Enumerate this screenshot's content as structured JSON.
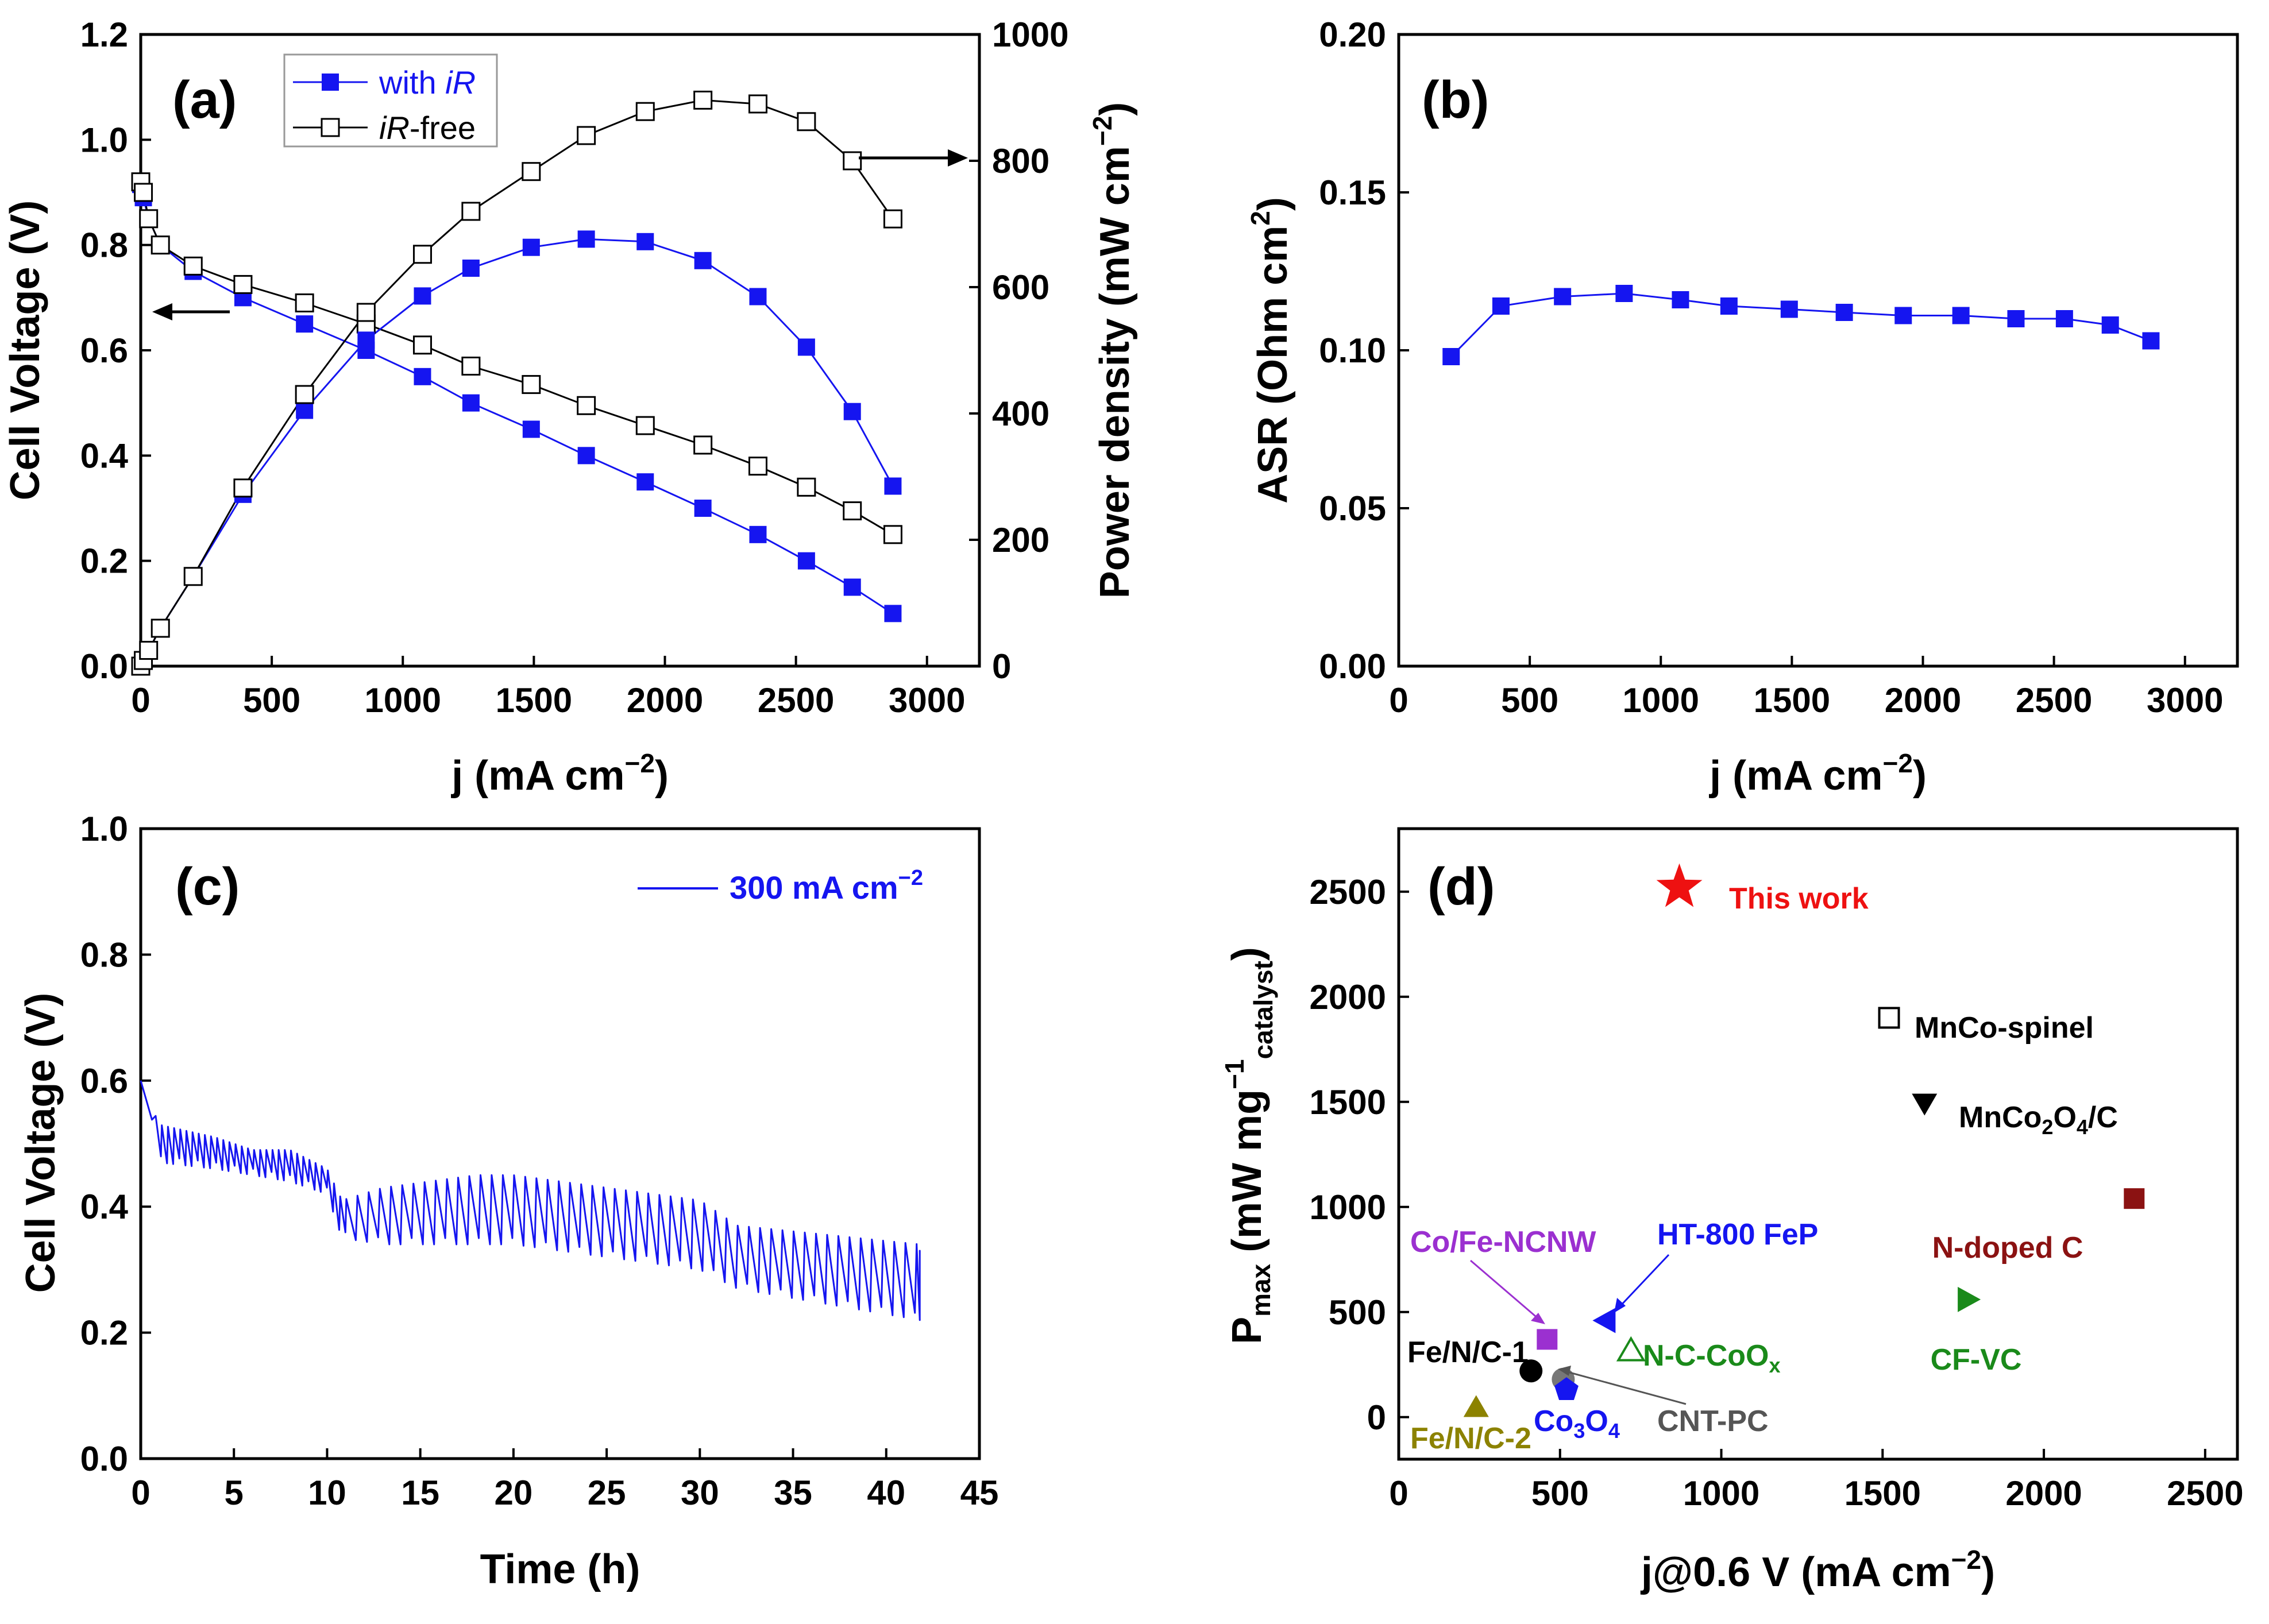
{
  "chart_data": [
    {
      "panel": "(a)",
      "type": "line",
      "xlabel_main": "j (mA cm",
      "xlabel_sup": "−2",
      "xlabel_end": ")",
      "ylabel": "Cell Voltage (V)",
      "y2label_main": "Power density (mW cm",
      "y2label_sup": "−2",
      "y2label_end": ")",
      "xlim": [
        0,
        3200
      ],
      "ylim": [
        0,
        1.2
      ],
      "y2lim": [
        0,
        1000
      ],
      "xticks": [
        "0",
        "500",
        "1000",
        "1500",
        "2000",
        "2500",
        "3000"
      ],
      "yticks": [
        "0.0",
        "0.2",
        "0.4",
        "0.6",
        "0.8",
        "1.0",
        "1.2"
      ],
      "y2ticks": [
        "0",
        "200",
        "400",
        "600",
        "800",
        "1000"
      ],
      "legend": [
        {
          "pre": "with ",
          "italic": "iR",
          "post": "",
          "color": "#1515f0",
          "marker": "filled-square"
        },
        {
          "pre": "",
          "italic": "iR",
          "post": "-free",
          "color": "#000000",
          "marker": "open-square"
        }
      ],
      "x": [
        0,
        10,
        30,
        75,
        200,
        390,
        625,
        860,
        1075,
        1260,
        1490,
        1700,
        1925,
        2145,
        2355,
        2540,
        2715,
        2870
      ],
      "series": [
        {
          "name": "with iR voltage",
          "axis": "left",
          "color": "#1515f0",
          "marker": "filled",
          "values": [
            0.915,
            0.89,
            0.85,
            0.8,
            0.75,
            0.7,
            0.65,
            0.6,
            0.55,
            0.5,
            0.45,
            0.4,
            0.35,
            0.3,
            0.25,
            0.2,
            0.15,
            0.1
          ]
        },
        {
          "name": "iR-free voltage",
          "axis": "left",
          "color": "#000000",
          "marker": "open",
          "values": [
            0.92,
            0.9,
            0.85,
            0.8,
            0.76,
            0.725,
            0.69,
            0.65,
            0.61,
            0.57,
            0.535,
            0.495,
            0.457,
            0.42,
            0.38,
            0.34,
            0.295,
            0.25
          ]
        },
        {
          "name": "with iR power",
          "axis": "right",
          "color": "#1515f0",
          "marker": "filled",
          "values": [
            0,
            9,
            25,
            60,
            142,
            272,
            405,
            516,
            586,
            630,
            663,
            676,
            672,
            642,
            585,
            505,
            403,
            285
          ]
        },
        {
          "name": "iR-free power",
          "axis": "right",
          "color": "#000000",
          "marker": "open",
          "values": [
            0,
            9,
            25,
            60,
            142,
            282,
            430,
            560,
            652,
            720,
            783,
            840,
            878,
            896,
            890,
            862,
            800,
            708
          ]
        }
      ]
    },
    {
      "panel": "(b)",
      "type": "line",
      "xlabel_main": "j (mA cm",
      "xlabel_sup": "−2",
      "xlabel_end": ")",
      "ylabel_main": "ASR (Ohm cm",
      "ylabel_sup": "2",
      "ylabel_end": ")",
      "xlim": [
        0,
        3200
      ],
      "ylim": [
        0,
        0.2
      ],
      "xticks": [
        "0",
        "500",
        "1000",
        "1500",
        "2000",
        "2500",
        "3000"
      ],
      "yticks": [
        "0.00",
        "0.05",
        "0.10",
        "0.15",
        "0.20"
      ],
      "x": [
        200,
        390,
        625,
        860,
        1075,
        1260,
        1490,
        1700,
        1925,
        2145,
        2355,
        2540,
        2715,
        2870
      ],
      "series": [
        {
          "name": "ASR",
          "color": "#1515f0",
          "marker": "filled",
          "values": [
            0.098,
            0.114,
            0.117,
            0.118,
            0.116,
            0.114,
            0.113,
            0.112,
            0.111,
            0.111,
            0.11,
            0.11,
            0.108,
            0.103
          ]
        }
      ]
    },
    {
      "panel": "(c)",
      "type": "line",
      "xlabel": "Time (h)",
      "ylabel": "Cell Voltage (V)",
      "xlim": [
        0,
        45
      ],
      "ylim": [
        0,
        1.0
      ],
      "xticks": [
        "0",
        "5",
        "10",
        "15",
        "20",
        "25",
        "30",
        "35",
        "40",
        "45"
      ],
      "yticks": [
        "0.0",
        "0.2",
        "0.4",
        "0.6",
        "0.8",
        "1.0"
      ],
      "legend_main": "300 mA cm",
      "legend_sup": "−2",
      "color": "#1515f0",
      "trend": {
        "t": [
          0,
          1,
          4,
          6,
          8,
          10,
          10.8,
          13,
          18,
          20,
          25,
          30,
          32,
          41.8
        ],
        "upper": [
          0.6,
          0.53,
          0.51,
          0.49,
          0.49,
          0.46,
          0.41,
          0.43,
          0.45,
          0.45,
          0.43,
          0.41,
          0.37,
          0.34
        ],
        "lower": [
          0.56,
          0.47,
          0.46,
          0.45,
          0.44,
          0.42,
          0.35,
          0.34,
          0.34,
          0.34,
          0.32,
          0.3,
          0.27,
          0.22
        ]
      }
    },
    {
      "panel": "(d)",
      "type": "scatter",
      "xlabel_main": "j@0.6 V (mA cm",
      "xlabel_sup": "−2",
      "xlabel_end": ")",
      "ylabel_main": "P",
      "ylabel_sub1": "max",
      "ylabel_mid": " (mW mg",
      "ylabel_sup": "−1",
      "ylabel_sub2": "catalyst",
      "ylabel_end": ")",
      "xlim": [
        0,
        2600
      ],
      "ylim": [
        -200,
        2800
      ],
      "xticks": [
        "0",
        "500",
        "1000",
        "1500",
        "2000",
        "2500"
      ],
      "yticks": [
        "0",
        "500",
        "1000",
        "1500",
        "2000",
        "2500"
      ],
      "points": [
        {
          "label": "This work",
          "x": 870,
          "y": 2520,
          "marker": "star",
          "color": "#ee1111"
        },
        {
          "label": "MnCo-spinel",
          "x": 1520,
          "y": 1900,
          "marker": "open-square",
          "color": "#000000"
        },
        {
          "label": "MnCo",
          "sub": "2",
          "label2": "O",
          "sub2": "4",
          "label3": "/C",
          "x": 1630,
          "y": 1490,
          "marker": "down-triangle",
          "color": "#000000"
        },
        {
          "label": "N-doped C",
          "x": 2280,
          "y": 1040,
          "marker": "filled-square",
          "color": "#8b1212"
        },
        {
          "label": "CF-VC",
          "x": 1765,
          "y": 560,
          "marker": "right-triangle",
          "color": "#1a8a1a"
        },
        {
          "label": "HT-800 FeP",
          "x": 640,
          "y": 460,
          "marker": "left-triangle",
          "color": "#1515f0"
        },
        {
          "label": "Co/Fe-NCNW",
          "x": 460,
          "y": 370,
          "marker": "filled-square",
          "color": "#9b30d0"
        },
        {
          "label": "N-C-CoO",
          "sub": "x",
          "x": 720,
          "y": 320,
          "marker": "open-triangle",
          "color": "#1a8a1a"
        },
        {
          "label": "Fe/N/C-1",
          "x": 410,
          "y": 220,
          "marker": "circle",
          "color": "#000000"
        },
        {
          "label": "CNT-PC",
          "x": 510,
          "y": 180,
          "marker": "circle",
          "color": "#777777"
        },
        {
          "label": "Co",
          "sub": "3",
          "label2": "O",
          "sub2": "4",
          "x": 520,
          "y": 130,
          "marker": "pentagon",
          "color": "#1515f0"
        },
        {
          "label": "Fe/N/C-2",
          "x": 240,
          "y": 50,
          "marker": "up-triangle",
          "color": "#8c8200"
        }
      ]
    }
  ]
}
